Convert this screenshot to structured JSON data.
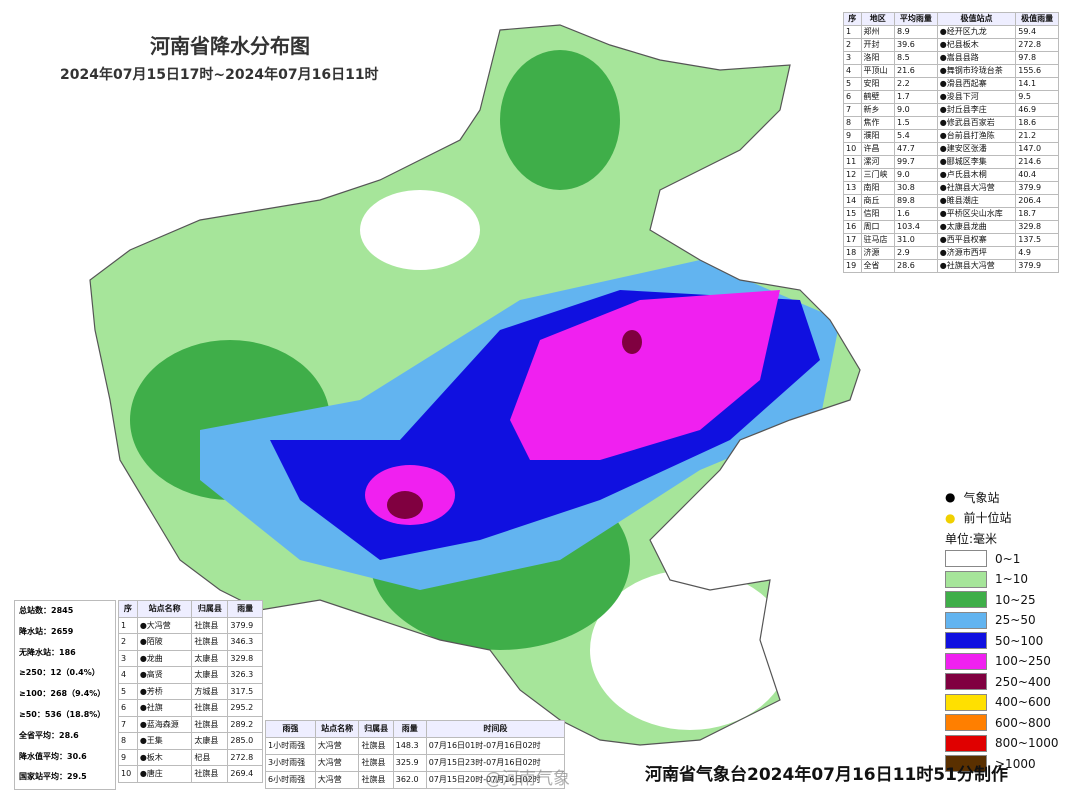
{
  "header": {
    "title": "河南省降水分布图",
    "subtitle": "2024年07月15日17时~2024年07月16日11时"
  },
  "city_table": {
    "columns": [
      "序",
      "地区",
      "平均雨量",
      "极值站点",
      "极值雨量"
    ],
    "rows": [
      [
        "1",
        "郑州",
        "8.9",
        "●经开区九龙",
        "59.4"
      ],
      [
        "2",
        "开封",
        "39.6",
        "●杞县板木",
        "272.8"
      ],
      [
        "3",
        "洛阳",
        "8.5",
        "●嵩县县路",
        "97.8"
      ],
      [
        "4",
        "平顶山",
        "21.6",
        "●舞钢市玲珑台茶",
        "155.6"
      ],
      [
        "5",
        "安阳",
        "2.2",
        "●滑县西起寨",
        "14.1"
      ],
      [
        "6",
        "鹤壁",
        "1.7",
        "●浚县下河",
        "9.5"
      ],
      [
        "7",
        "新乡",
        "9.0",
        "●封丘县李庄",
        "46.9"
      ],
      [
        "8",
        "焦作",
        "1.5",
        "●修武县百家岩",
        "18.6"
      ],
      [
        "9",
        "濮阳",
        "5.4",
        "●台前县打渔陈",
        "21.2"
      ],
      [
        "10",
        "许昌",
        "47.7",
        "●建安区张潘",
        "147.0"
      ],
      [
        "11",
        "漯河",
        "99.7",
        "●郾城区李集",
        "214.6"
      ],
      [
        "12",
        "三门峡",
        "9.0",
        "●卢氏县木桐",
        "40.4"
      ],
      [
        "13",
        "南阳",
        "30.8",
        "●社旗县大冯营",
        "379.9"
      ],
      [
        "14",
        "商丘",
        "89.8",
        "●睢县潮庄",
        "206.4"
      ],
      [
        "15",
        "信阳",
        "1.6",
        "●平桥区尖山水库",
        "18.7"
      ],
      [
        "16",
        "周口",
        "103.4",
        "●太康县龙曲",
        "329.8"
      ],
      [
        "17",
        "驻马店",
        "31.0",
        "●西平县权寨",
        "137.5"
      ],
      [
        "18",
        "济源",
        "2.9",
        "●济源市西坪",
        "4.9"
      ],
      [
        "19",
        "全省",
        "28.6",
        "●社旗县大冯营",
        "379.9"
      ]
    ]
  },
  "stats": [
    "总站数：2845",
    "降水站：2659",
    "无降水站：186",
    "≥250：12（0.4%）",
    "≥100：268（9.4%）",
    "≥50：536（18.8%）",
    "全省平均：28.6",
    "降水值平均：30.6",
    "国家站平均：29.5"
  ],
  "top10_table": {
    "columns": [
      "序",
      "站点名称",
      "归属县",
      "雨量"
    ],
    "rows": [
      [
        "1",
        "●大冯营",
        "社旗县",
        "379.9"
      ],
      [
        "2",
        "●陌陂",
        "社旗县",
        "346.3"
      ],
      [
        "3",
        "●龙曲",
        "太康县",
        "329.8"
      ],
      [
        "4",
        "●高贤",
        "太康县",
        "326.3"
      ],
      [
        "5",
        "●芳桥",
        "方城县",
        "317.5"
      ],
      [
        "6",
        "●社旗",
        "社旗县",
        "295.2"
      ],
      [
        "7",
        "●蓝海森源",
        "社旗县",
        "289.2"
      ],
      [
        "8",
        "●王集",
        "太康县",
        "285.0"
      ],
      [
        "9",
        "●板木",
        "杞县",
        "272.8"
      ],
      [
        "10",
        "●唐庄",
        "社旗县",
        "269.4"
      ]
    ]
  },
  "intensity_table": {
    "columns": [
      "雨强",
      "站点名称",
      "归属县",
      "雨量",
      "时间段"
    ],
    "rows": [
      [
        "1小时雨强",
        "大冯营",
        "社旗县",
        "148.3",
        "07月16日01时-07月16日02时"
      ],
      [
        "3小时雨强",
        "大冯营",
        "社旗县",
        "325.9",
        "07月15日23时-07月16日02时"
      ],
      [
        "6小时雨强",
        "大冯营",
        "社旗县",
        "362.0",
        "07月15日20时-07月16日02时"
      ]
    ]
  },
  "legend": {
    "station": "气象站",
    "top_station": "前十位站",
    "unit": "单位:毫米",
    "classes": [
      {
        "label": "0~1",
        "color": "#ffffff"
      },
      {
        "label": "1~10",
        "color": "#a6e59a"
      },
      {
        "label": "10~25",
        "color": "#3fae49"
      },
      {
        "label": "25~50",
        "color": "#62b4f0"
      },
      {
        "label": "50~100",
        "color": "#1010e0"
      },
      {
        "label": "100~250",
        "color": "#f020f0"
      },
      {
        "label": "250~400",
        "color": "#800040"
      },
      {
        "label": "400~600",
        "color": "#ffe000"
      },
      {
        "label": "600~800",
        "color": "#ff7f00"
      },
      {
        "label": "800~1000",
        "color": "#e00000"
      },
      {
        "label": ">1000",
        "color": "#5a3000"
      }
    ]
  },
  "footer": "河南省气象台2024年07月16日11时51分制作",
  "watermark": "@河南气象"
}
